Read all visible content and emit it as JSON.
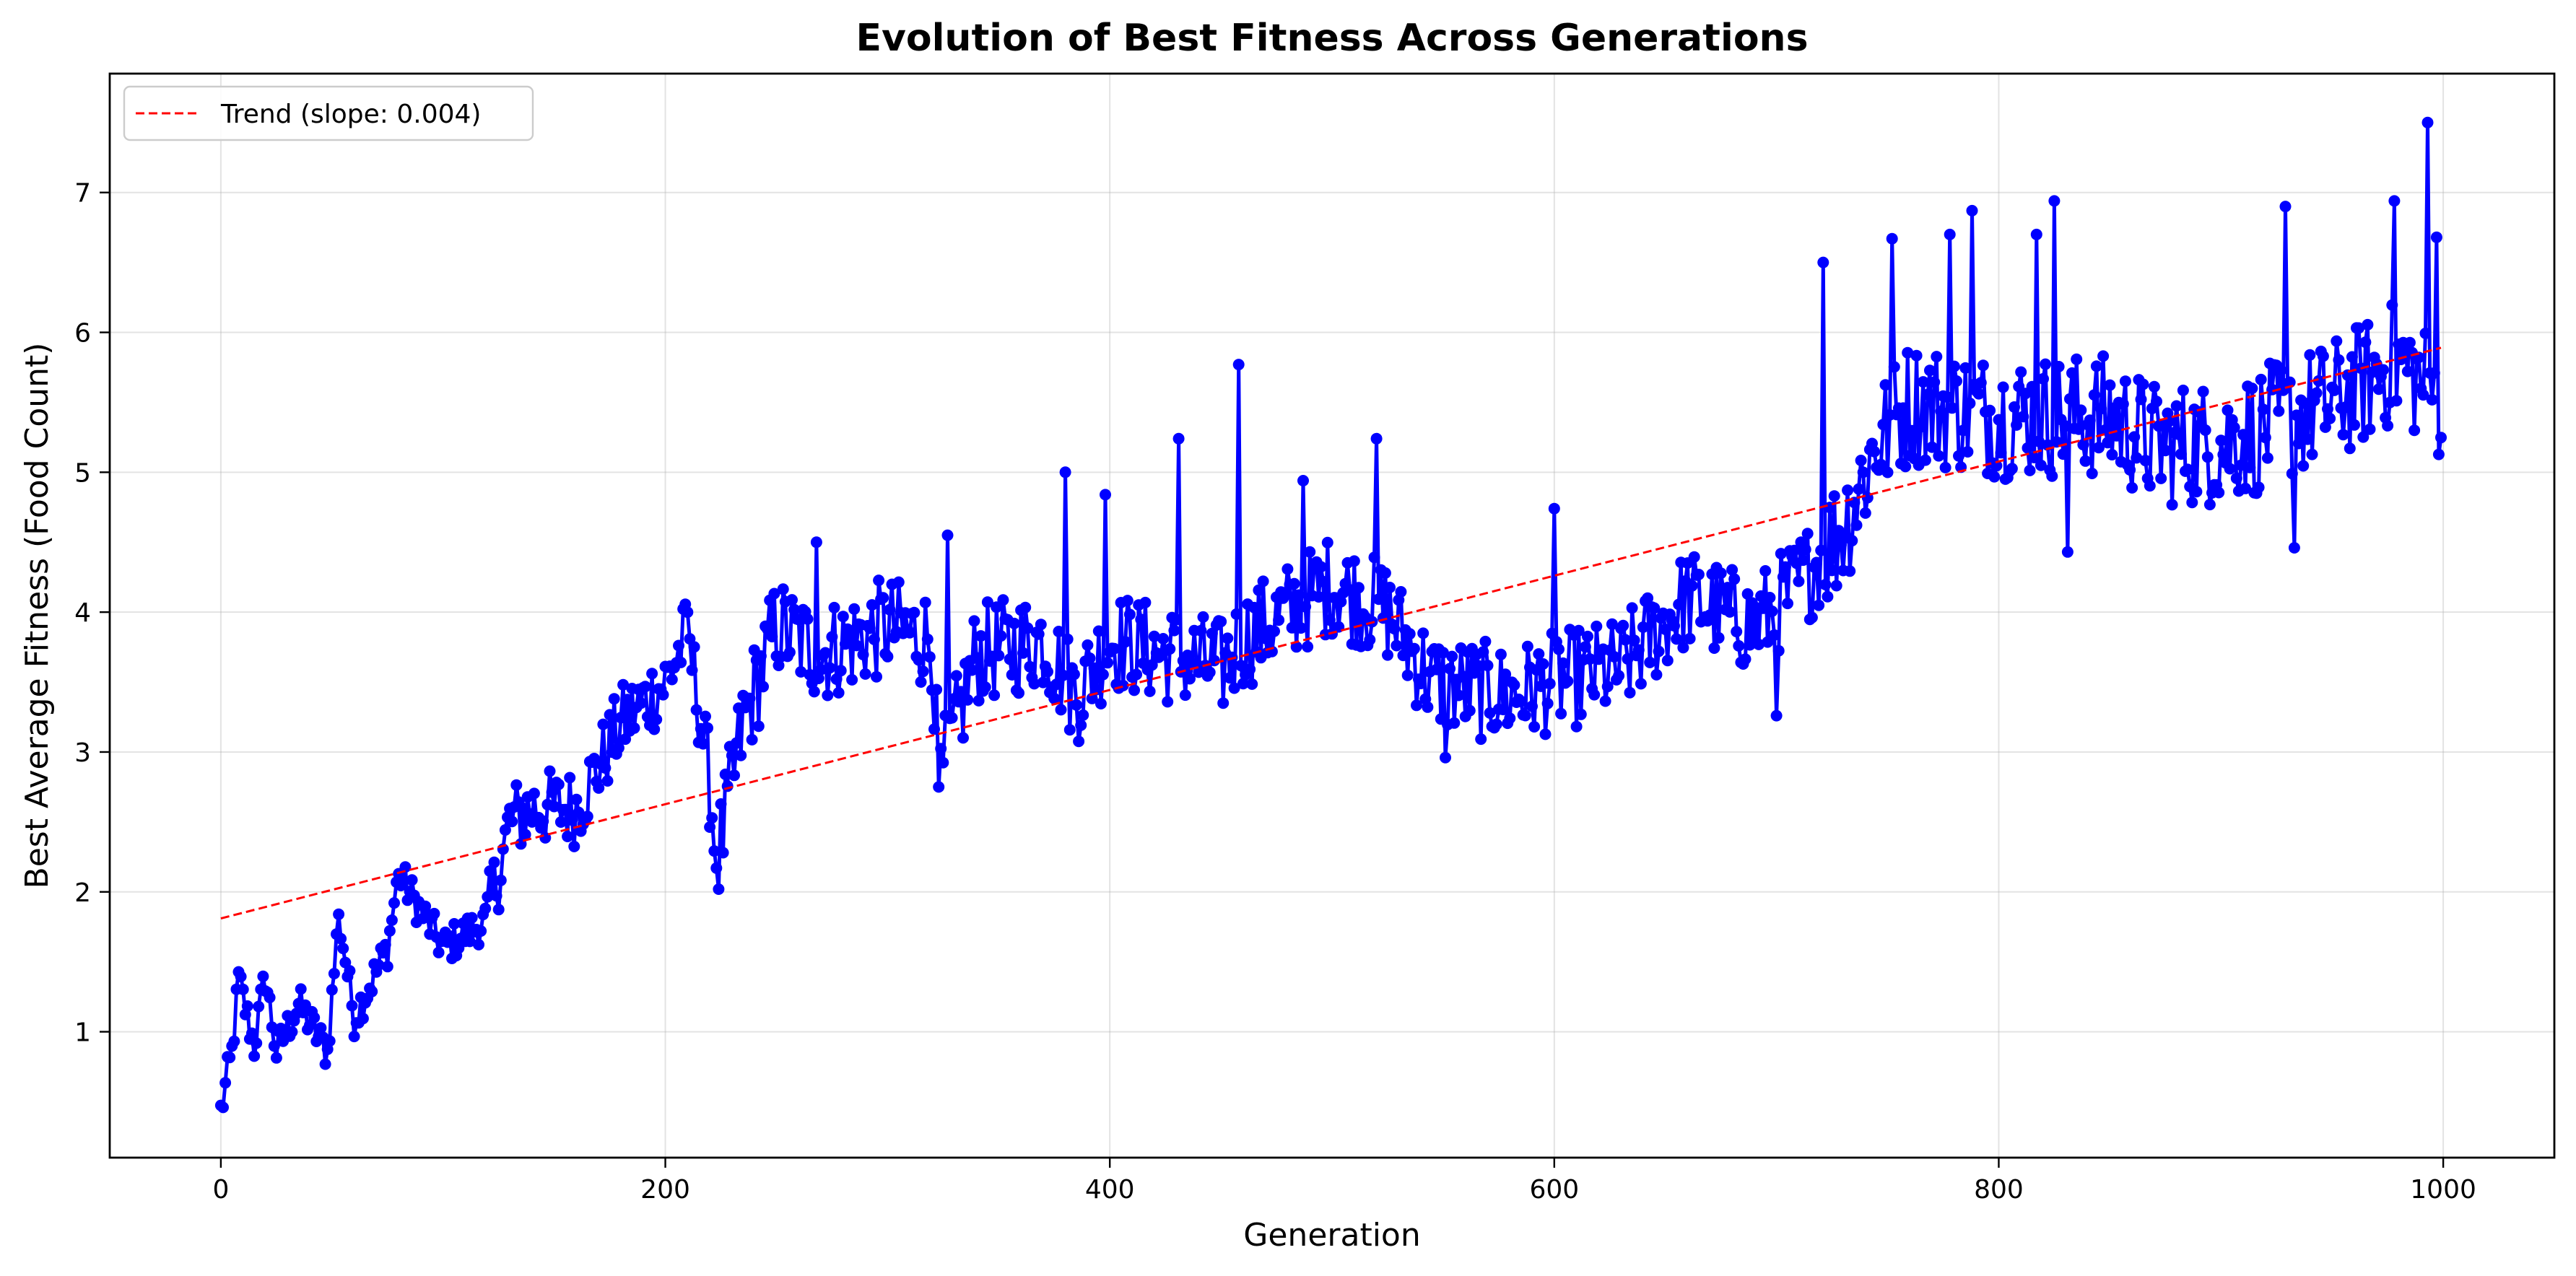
{
  "chart_data": {
    "type": "line",
    "title": "Evolution of Best Fitness Across Generations",
    "xlabel": "Generation",
    "ylabel": "Best Average Fitness (Food Count)",
    "xlim": [
      -50,
      1050
    ],
    "ylim": [
      0.1,
      7.85
    ],
    "xticks": [
      0,
      200,
      400,
      600,
      800,
      1000
    ],
    "yticks": [
      1,
      2,
      3,
      4,
      5,
      6,
      7
    ],
    "grid": true,
    "legend_position": "top-left",
    "colors": {
      "series": "#0000ff",
      "trend": "#ff0000"
    },
    "anchors": [
      [
        0,
        0.43
      ],
      [
        5,
        0.85
      ],
      [
        8,
        1.37
      ],
      [
        15,
        0.9
      ],
      [
        20,
        1.4
      ],
      [
        25,
        0.85
      ],
      [
        35,
        1.2
      ],
      [
        48,
        0.85
      ],
      [
        53,
        1.84
      ],
      [
        60,
        1.1
      ],
      [
        75,
        1.6
      ],
      [
        80,
        2.13
      ],
      [
        100,
        1.6
      ],
      [
        120,
        1.8
      ],
      [
        130,
        2.5
      ],
      [
        140,
        2.6
      ],
      [
        160,
        2.6
      ],
      [
        180,
        3.2
      ],
      [
        200,
        3.5
      ],
      [
        210,
        3.85
      ],
      [
        220,
        2.8
      ],
      [
        223,
        2.17
      ],
      [
        235,
        3.2
      ],
      [
        250,
        3.9
      ],
      [
        270,
        3.7
      ],
      [
        300,
        3.9
      ],
      [
        320,
        3.8
      ],
      [
        323,
        2.75
      ],
      [
        340,
        3.7
      ],
      [
        370,
        3.8
      ],
      [
        385,
        3.4
      ],
      [
        400,
        3.8
      ],
      [
        425,
        3.7
      ],
      [
        450,
        3.6
      ],
      [
        460,
        3.8
      ],
      [
        480,
        4.0
      ],
      [
        500,
        4.2
      ],
      [
        525,
        4.0
      ],
      [
        545,
        3.5
      ],
      [
        580,
        3.4
      ],
      [
        600,
        3.5
      ],
      [
        630,
        3.6
      ],
      [
        660,
        4.1
      ],
      [
        690,
        3.9
      ],
      [
        710,
        4.2
      ],
      [
        730,
        4.6
      ],
      [
        745,
        5.2
      ],
      [
        760,
        5.5
      ],
      [
        800,
        5.4
      ],
      [
        850,
        5.4
      ],
      [
        870,
        5.2
      ],
      [
        900,
        5.2
      ],
      [
        950,
        5.5
      ],
      [
        980,
        5.8
      ],
      [
        1000,
        5.5
      ]
    ],
    "spikes": [
      [
        53,
        1.84
      ],
      [
        80,
        2.13
      ],
      [
        210,
        4.0
      ],
      [
        223,
        2.17
      ],
      [
        268,
        4.5
      ],
      [
        323,
        2.75
      ],
      [
        327,
        4.55
      ],
      [
        380,
        5.0
      ],
      [
        398,
        4.84
      ],
      [
        431,
        5.24
      ],
      [
        458,
        5.77
      ],
      [
        487,
        4.94
      ],
      [
        520,
        5.24
      ],
      [
        551,
        2.96
      ],
      [
        600,
        4.74
      ],
      [
        700,
        3.26
      ],
      [
        721,
        6.5
      ],
      [
        752,
        6.67
      ],
      [
        778,
        6.7
      ],
      [
        788,
        6.87
      ],
      [
        817,
        6.7
      ],
      [
        825,
        6.94
      ],
      [
        831,
        4.43
      ],
      [
        916,
        4.85
      ],
      [
        929,
        6.9
      ],
      [
        933,
        4.46
      ],
      [
        978,
        6.94
      ],
      [
        993,
        7.5
      ],
      [
        997,
        6.68
      ]
    ],
    "series": [
      {
        "name": "",
        "style": "solid line with markers",
        "n_points": 1000
      },
      {
        "name": "Trend (slope: 0.004)",
        "style": "dashed",
        "x": [
          0,
          999
        ],
        "y": [
          1.81,
          5.89
        ]
      }
    ]
  }
}
